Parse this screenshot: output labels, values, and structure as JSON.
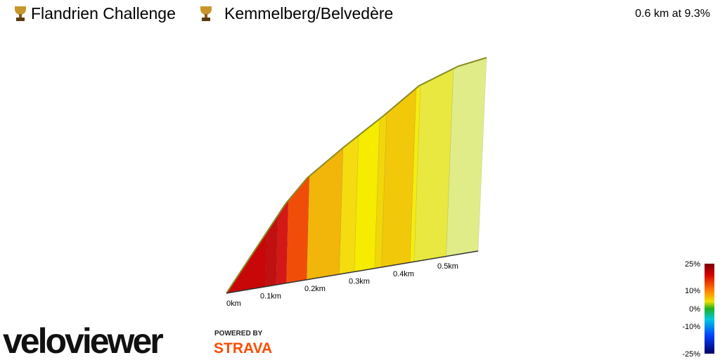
{
  "header": {
    "title": "Flandrien Challenge",
    "segment": "Kemmelberg/Belvedère",
    "stat": "0.6 km at 9.3%"
  },
  "distance_ticks": [
    "0km",
    "0.1km",
    "0.2km",
    "0.3km",
    "0.4km",
    "0.5km"
  ],
  "gradient_scale": [
    "25%",
    "10%",
    "0%",
    "-10%",
    "-25%"
  ],
  "branding": {
    "logo": "veloviewer",
    "powered_by": "POWERED BY",
    "partner": "STRAVA"
  }
}
